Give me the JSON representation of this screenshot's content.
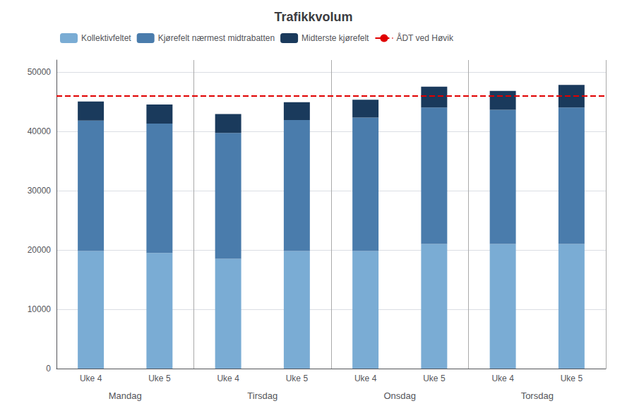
{
  "chart_data": {
    "type": "bar",
    "title": "Trafikkvolum",
    "categories": [
      "Uke 4",
      "Uke 5",
      "Uke 4",
      "Uke 5",
      "Uke 4",
      "Uke 5",
      "Uke 4",
      "Uke 5"
    ],
    "group_labels": [
      "Mandag",
      "Tirsdag",
      "Onsdag",
      "Torsdag"
    ],
    "stacked": true,
    "series": [
      {
        "name": "Kollektivfeltet",
        "color": "#7aacd4",
        "values": [
          19800,
          19500,
          18500,
          19800,
          19800,
          21000,
          21000,
          21000
        ]
      },
      {
        "name": "Kjørefelt nærmest midtrabatten",
        "color": "#4a7cac",
        "values": [
          22000,
          21800,
          21200,
          22100,
          22500,
          23000,
          22600,
          23000
        ]
      },
      {
        "name": "Midterste kjørefelt",
        "color": "#1a3a5c",
        "values": [
          3200,
          3200,
          3200,
          3000,
          3000,
          3500,
          3200,
          3800
        ]
      }
    ],
    "reference_line": {
      "name": "ÅDT ved Høvik",
      "value": 46000,
      "color": "#e00000",
      "line_style": "dashed"
    },
    "ylim": [
      0,
      52000
    ],
    "yticks": [
      0,
      10000,
      20000,
      30000,
      40000,
      50000
    ],
    "grid": true,
    "legend": "upper left"
  }
}
